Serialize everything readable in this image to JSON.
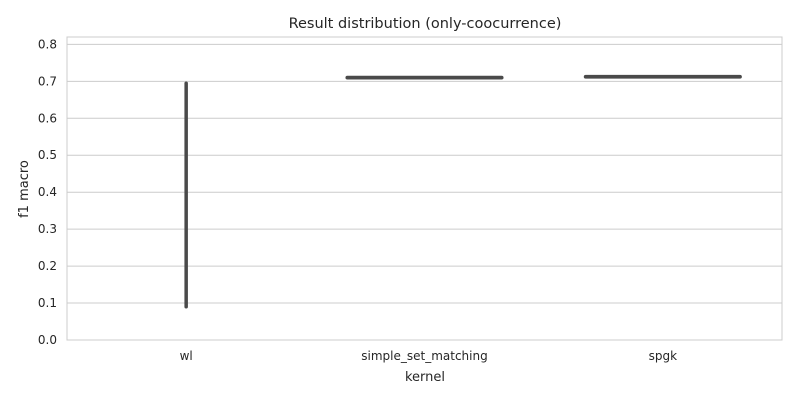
{
  "chart_data": {
    "type": "violin",
    "title": "Result distribution (only-coocurrence)",
    "xlabel": "kernel",
    "ylabel": "f1 macro",
    "categories": [
      "wl",
      "simple_set_matching",
      "spgk"
    ],
    "ylim": [
      0,
      0.82
    ],
    "yticks": [
      0.0,
      0.1,
      0.2,
      0.3,
      0.4,
      0.5,
      0.6,
      0.7,
      0.8
    ],
    "ytick_labels": [
      "0.0",
      "0.1",
      "0.2",
      "0.3",
      "0.4",
      "0.5",
      "0.6",
      "0.7",
      "0.8"
    ],
    "grid": true,
    "distributions": [
      {
        "category": "wl",
        "min": 0.09,
        "max": 0.695
      },
      {
        "category": "simple_set_matching",
        "min": 0.708,
        "max": 0.712
      },
      {
        "category": "spgk",
        "min": 0.709,
        "max": 0.716
      }
    ],
    "colors": {
      "violin": "#4a4a4a",
      "grid": "#cccccc",
      "frame": "#cccccc",
      "text": "#262626"
    }
  }
}
